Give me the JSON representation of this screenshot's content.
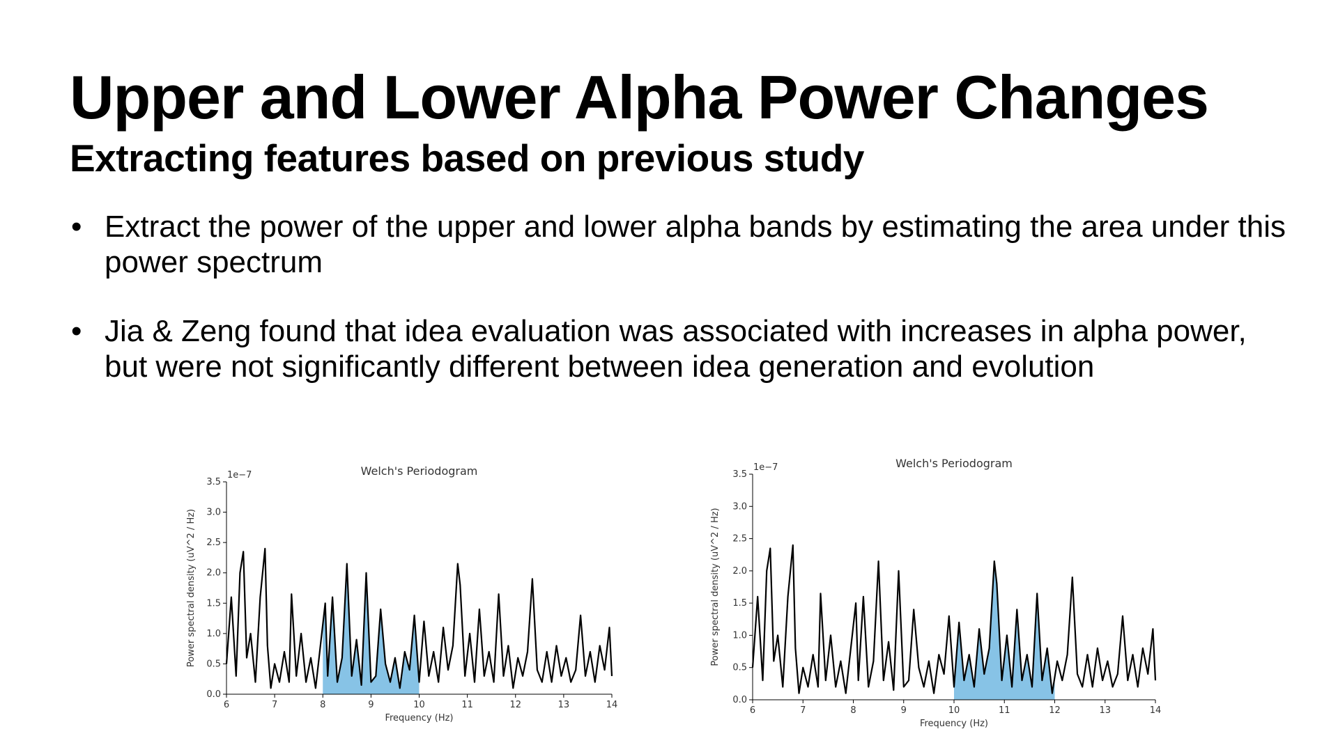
{
  "slide": {
    "title": "Upper and Lower Alpha Power Changes",
    "subtitle": "Extracting features based on previous study",
    "bullets": [
      "Extract the power of the upper and lower alpha bands by estimating the area under this power spectrum",
      "Jia & Zeng found that idea evaluation was associated with increases in alpha power, but were not significantly different between idea generation and evolution"
    ],
    "bullet_glyph": "•"
  },
  "chart_data": [
    {
      "type": "line",
      "title": "Welch's Periodogram",
      "xlabel": "Frequency (Hz)",
      "ylabel": "Power spectral density (uV^2 / Hz)",
      "y_scale_label": "1e−7",
      "xlim": [
        6,
        14
      ],
      "ylim": [
        0,
        3.5
      ],
      "xticks": [
        "6",
        "7",
        "8",
        "9",
        "10",
        "11",
        "12",
        "13",
        "14"
      ],
      "yticks": [
        "0.0",
        "0.5",
        "1.0",
        "1.5",
        "2.0",
        "2.5",
        "3.0",
        "3.5"
      ],
      "shaded_band": [
        8,
        10
      ],
      "line_color": "#000000",
      "fill_color": "#87c3e6",
      "x": [
        6.0,
        6.1,
        6.2,
        6.28,
        6.35,
        6.42,
        6.5,
        6.6,
        6.7,
        6.8,
        6.85,
        6.92,
        7.0,
        7.1,
        7.2,
        7.3,
        7.35,
        7.45,
        7.55,
        7.65,
        7.75,
        7.85,
        7.95,
        8.05,
        8.1,
        8.2,
        8.3,
        8.4,
        8.5,
        8.6,
        8.7,
        8.8,
        8.9,
        9.0,
        9.1,
        9.2,
        9.3,
        9.4,
        9.5,
        9.6,
        9.7,
        9.8,
        9.9,
        10.0,
        10.1,
        10.2,
        10.3,
        10.4,
        10.5,
        10.6,
        10.7,
        10.8,
        10.85,
        10.95,
        11.05,
        11.15,
        11.25,
        11.35,
        11.45,
        11.55,
        11.65,
        11.75,
        11.85,
        11.95,
        12.05,
        12.15,
        12.25,
        12.35,
        12.45,
        12.55,
        12.65,
        12.75,
        12.85,
        12.95,
        13.05,
        13.15,
        13.25,
        13.35,
        13.45,
        13.55,
        13.65,
        13.75,
        13.85,
        13.95,
        14.0
      ],
      "y": [
        0.5,
        1.6,
        0.3,
        2.0,
        2.35,
        0.6,
        1.0,
        0.2,
        1.6,
        2.4,
        0.8,
        0.1,
        0.5,
        0.2,
        0.7,
        0.2,
        1.65,
        0.3,
        1.0,
        0.2,
        0.6,
        0.1,
        0.8,
        1.5,
        0.3,
        1.6,
        0.2,
        0.6,
        2.15,
        0.3,
        0.9,
        0.15,
        2.0,
        0.2,
        0.3,
        1.4,
        0.5,
        0.2,
        0.6,
        0.1,
        0.7,
        0.4,
        1.3,
        0.2,
        1.2,
        0.3,
        0.7,
        0.2,
        1.1,
        0.4,
        0.8,
        2.15,
        1.8,
        0.3,
        1.0,
        0.2,
        1.4,
        0.3,
        0.7,
        0.2,
        1.65,
        0.3,
        0.8,
        0.1,
        0.6,
        0.3,
        0.7,
        1.9,
        0.4,
        0.2,
        0.7,
        0.2,
        0.8,
        0.3,
        0.6,
        0.2,
        0.4,
        1.3,
        0.3,
        0.7,
        0.2,
        0.8,
        0.4,
        1.1,
        0.3
      ]
    },
    {
      "type": "line",
      "title": "Welch's Periodogram",
      "xlabel": "Frequency (Hz)",
      "ylabel": "Power spectral density (uV^2 / Hz)",
      "y_scale_label": "1e−7",
      "xlim": [
        6,
        14
      ],
      "ylim": [
        0,
        3.5
      ],
      "xticks": [
        "6",
        "7",
        "8",
        "9",
        "10",
        "11",
        "12",
        "13",
        "14"
      ],
      "yticks": [
        "0.0",
        "0.5",
        "1.0",
        "1.5",
        "2.0",
        "2.5",
        "3.0",
        "3.5"
      ],
      "shaded_band": [
        10,
        12
      ],
      "line_color": "#000000",
      "fill_color": "#87c3e6",
      "x": [
        6.0,
        6.1,
        6.2,
        6.28,
        6.35,
        6.42,
        6.5,
        6.6,
        6.7,
        6.8,
        6.85,
        6.92,
        7.0,
        7.1,
        7.2,
        7.3,
        7.35,
        7.45,
        7.55,
        7.65,
        7.75,
        7.85,
        7.95,
        8.05,
        8.1,
        8.2,
        8.3,
        8.4,
        8.5,
        8.6,
        8.7,
        8.8,
        8.9,
        9.0,
        9.1,
        9.2,
        9.3,
        9.4,
        9.5,
        9.6,
        9.7,
        9.8,
        9.9,
        10.0,
        10.1,
        10.2,
        10.3,
        10.4,
        10.5,
        10.6,
        10.7,
        10.8,
        10.85,
        10.95,
        11.05,
        11.15,
        11.25,
        11.35,
        11.45,
        11.55,
        11.65,
        11.75,
        11.85,
        11.95,
        12.05,
        12.15,
        12.25,
        12.35,
        12.45,
        12.55,
        12.65,
        12.75,
        12.85,
        12.95,
        13.05,
        13.15,
        13.25,
        13.35,
        13.45,
        13.55,
        13.65,
        13.75,
        13.85,
        13.95,
        14.0
      ],
      "y": [
        0.5,
        1.6,
        0.3,
        2.0,
        2.35,
        0.6,
        1.0,
        0.2,
        1.6,
        2.4,
        0.8,
        0.1,
        0.5,
        0.2,
        0.7,
        0.2,
        1.65,
        0.3,
        1.0,
        0.2,
        0.6,
        0.1,
        0.8,
        1.5,
        0.3,
        1.6,
        0.2,
        0.6,
        2.15,
        0.3,
        0.9,
        0.15,
        2.0,
        0.2,
        0.3,
        1.4,
        0.5,
        0.2,
        0.6,
        0.1,
        0.7,
        0.4,
        1.3,
        0.2,
        1.2,
        0.3,
        0.7,
        0.2,
        1.1,
        0.4,
        0.8,
        2.15,
        1.8,
        0.3,
        1.0,
        0.2,
        1.4,
        0.3,
        0.7,
        0.2,
        1.65,
        0.3,
        0.8,
        0.1,
        0.6,
        0.3,
        0.7,
        1.9,
        0.4,
        0.2,
        0.7,
        0.2,
        0.8,
        0.3,
        0.6,
        0.2,
        0.4,
        1.3,
        0.3,
        0.7,
        0.2,
        0.8,
        0.4,
        1.1,
        0.3
      ]
    }
  ]
}
